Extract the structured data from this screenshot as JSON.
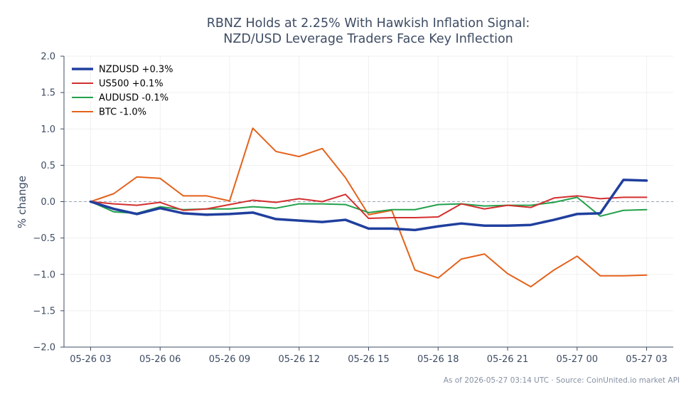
{
  "chart_data": {
    "type": "line",
    "title_lines": [
      "RBNZ Holds at 2.25% With Hawkish Inflation Signal:",
      "NZD/USD Leverage Traders Face Key Inflection"
    ],
    "xlabel": "",
    "ylabel": "% change",
    "ylim": [
      -2.0,
      2.0
    ],
    "y_ticks": [
      2.0,
      1.5,
      1.0,
      0.5,
      0.0,
      -0.5,
      -1.0,
      -1.5,
      -2.0
    ],
    "y_tick_labels": [
      "2.0",
      "1.5",
      "1.0",
      "0.5",
      "0.0",
      "−0.5",
      "−1.0",
      "−1.5",
      "−2.0"
    ],
    "x_range_hours": [
      -1.15,
      25.15
    ],
    "x_ticks": [
      0,
      3,
      6,
      9,
      12,
      15,
      18,
      21,
      24
    ],
    "x_tick_labels": [
      "05-26 03",
      "05-26 06",
      "05-26 09",
      "05-26 12",
      "05-26 15",
      "05-26 18",
      "05-26 21",
      "05-27 00",
      "05-27 03"
    ],
    "x": [
      "05-26 03:00",
      "05-26 04:00",
      "05-26 05:00",
      "05-26 06:00",
      "05-26 07:00",
      "05-26 08:00",
      "05-26 09:00",
      "05-26 10:00",
      "05-26 11:00",
      "05-26 12:00",
      "05-26 13:00",
      "05-26 14:00",
      "05-26 15:00",
      "05-26 16:00",
      "05-26 17:00",
      "05-26 18:00",
      "05-26 19:00",
      "05-26 20:00",
      "05-26 21:00",
      "05-26 22:00",
      "05-26 23:00",
      "05-27 00:00",
      "05-27 01:00",
      "05-27 02:00",
      "05-27 03:00"
    ],
    "grid": true,
    "zero_line": true,
    "legend_position": "top-left",
    "series": [
      {
        "name": "BTC -1.0%",
        "color": "#e4621b",
        "values": [
          0.0,
          0.11,
          0.34,
          0.32,
          0.08,
          0.08,
          0.01,
          1.01,
          0.69,
          0.62,
          0.73,
          0.33,
          -0.18,
          -0.12,
          -0.94,
          -1.05,
          -0.79,
          -0.72,
          -0.99,
          -1.17,
          -0.94,
          -0.75,
          -1.02,
          -1.02,
          -1.01
        ]
      },
      {
        "name": "AUDUSD -0.1%",
        "color": "#22a14b",
        "values": [
          0.0,
          -0.14,
          -0.16,
          -0.07,
          -0.11,
          -0.1,
          -0.1,
          -0.07,
          -0.09,
          -0.03,
          -0.03,
          -0.04,
          -0.15,
          -0.11,
          -0.11,
          -0.04,
          -0.03,
          -0.06,
          -0.05,
          -0.05,
          -0.01,
          0.06,
          -0.2,
          -0.12,
          -0.11
        ]
      },
      {
        "name": "US500 +0.1%",
        "color": "#d42f2f",
        "values": [
          0.0,
          -0.03,
          -0.05,
          -0.01,
          -0.12,
          -0.1,
          -0.04,
          0.02,
          -0.01,
          0.04,
          0.0,
          0.1,
          -0.23,
          -0.22,
          -0.22,
          -0.21,
          -0.03,
          -0.1,
          -0.05,
          -0.08,
          0.05,
          0.08,
          0.04,
          0.06,
          0.06
        ]
      },
      {
        "name": "NZDUSD +0.3%",
        "color": "#203f9e",
        "values": [
          0.0,
          -0.1,
          -0.17,
          -0.09,
          -0.16,
          -0.18,
          -0.17,
          -0.15,
          -0.24,
          -0.26,
          -0.28,
          -0.25,
          -0.37,
          -0.37,
          -0.39,
          -0.34,
          -0.3,
          -0.33,
          -0.33,
          -0.32,
          -0.25,
          -0.17,
          -0.16,
          0.3,
          0.29
        ]
      }
    ],
    "legend_order": [
      "NZDUSD +0.3%",
      "US500 +0.1%",
      "AUDUSD -0.1%",
      "BTC -1.0%"
    ],
    "source_note": "As of 2026-05-27 03:14 UTC · Source: CoinUnited.io market API"
  },
  "colors": {
    "axis": "#3e4c63",
    "grid": "#ececec",
    "zero_line": "#9aa5b8",
    "text": "#3e4c63",
    "source_text": "#8591a3"
  }
}
